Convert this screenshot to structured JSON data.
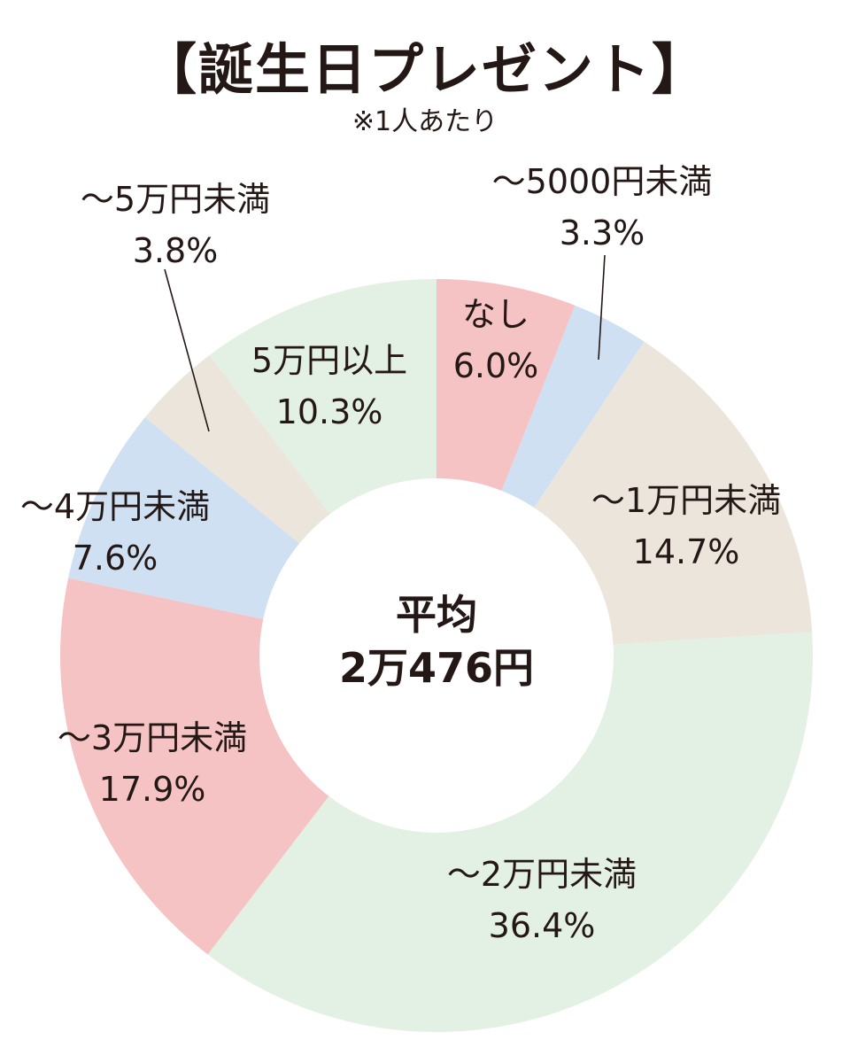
{
  "chart_data": {
    "type": "pie",
    "title": "【誕生日プレゼント】",
    "subtitle": "※1人あたり",
    "center_label": "平均",
    "center_value": "2万476円",
    "slices": [
      {
        "label": "なし",
        "value": 6.0,
        "value_label": "6.0%",
        "color": "#f5c3c3"
      },
      {
        "label": "～5000円未満",
        "value": 3.3,
        "value_label": "3.3%",
        "color": "#cfe0f2"
      },
      {
        "label": "～1万円未満",
        "value": 14.7,
        "value_label": "14.7%",
        "color": "#ebe5dc"
      },
      {
        "label": "～2万円未満",
        "value": 36.4,
        "value_label": "36.4%",
        "color": "#e3f0e4"
      },
      {
        "label": "～3万円未満",
        "value": 17.9,
        "value_label": "17.9%",
        "color": "#f5c3c3"
      },
      {
        "label": "～4万円未満",
        "value": 7.6,
        "value_label": "7.6%",
        "color": "#cfe0f2"
      },
      {
        "label": "～5万円未満",
        "value": 3.8,
        "value_label": "3.8%",
        "color": "#ebe5dc"
      },
      {
        "label": "5万円以上",
        "value": 10.3,
        "value_label": "10.3%",
        "color": "#e3f0e4"
      }
    ]
  }
}
